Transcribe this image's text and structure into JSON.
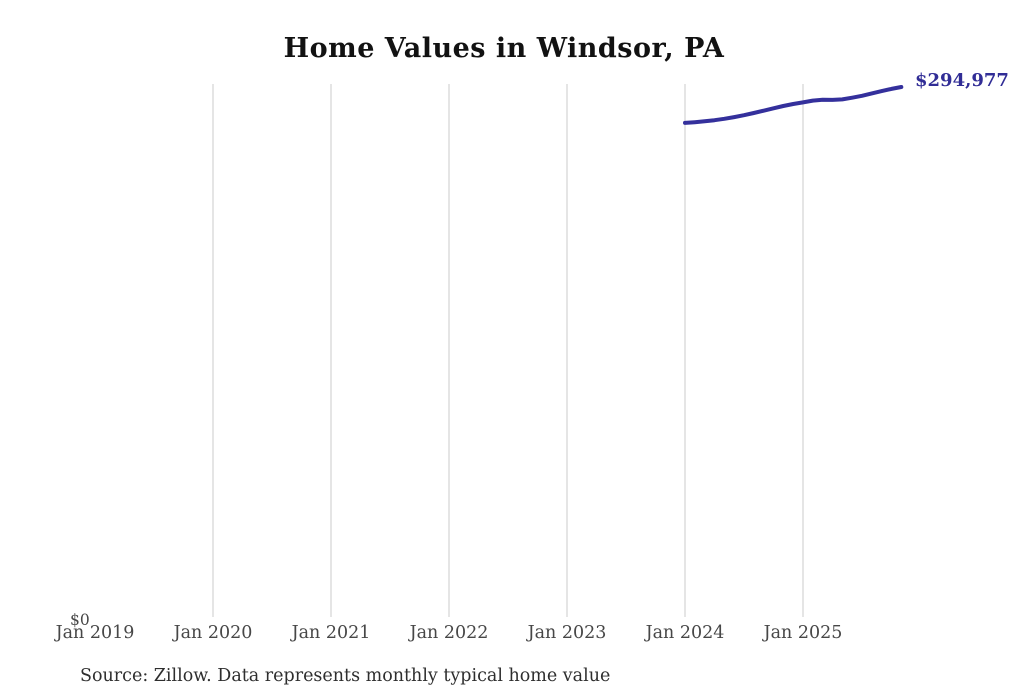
{
  "chart_data": {
    "type": "line",
    "title": "Home Values in Windsor, PA",
    "source_note": "Source: Zillow. Data represents monthly typical home value",
    "y_zero_label": "$0",
    "end_value_label": "$294,977",
    "x_tick_labels": [
      "Jan 2019",
      "Jan 2020",
      "Jan 2021",
      "Jan 2022",
      "Jan 2023",
      "Jan 2024",
      "Jan 2025"
    ],
    "grid": "vertical-only",
    "legend": "none",
    "ylim": [
      0,
      330000
    ],
    "series": [
      {
        "name": "typical-home-value",
        "x": [
          "Jan 2024",
          "Feb 2024",
          "Mar 2024",
          "Apr 2024",
          "May 2024",
          "Jun 2024",
          "Jul 2024",
          "Aug 2024",
          "Sep 2024",
          "Oct 2024",
          "Nov 2024",
          "Dec 2024",
          "Jan 2025",
          "Feb 2025",
          "Mar 2025",
          "Apr 2025",
          "May 2025",
          "Jun 2025",
          "Jul 2025",
          "Aug 2025",
          "Sep 2025",
          "Oct 2025",
          "Nov 2025"
        ],
        "values": [
          275000,
          275400,
          275900,
          276500,
          277300,
          278200,
          279300,
          280500,
          281800,
          283100,
          284400,
          285500,
          286400,
          287400,
          287900,
          287800,
          288100,
          289000,
          290100,
          291400,
          292700,
          293900,
          294977
        ]
      }
    ],
    "colors": {
      "line": "#34309c",
      "end_label": "#312d96",
      "grid": "#cbcbcb",
      "tick_label": "#474747",
      "title": "#121212",
      "source": "#2e2e2e",
      "background": "#ffffff"
    }
  }
}
